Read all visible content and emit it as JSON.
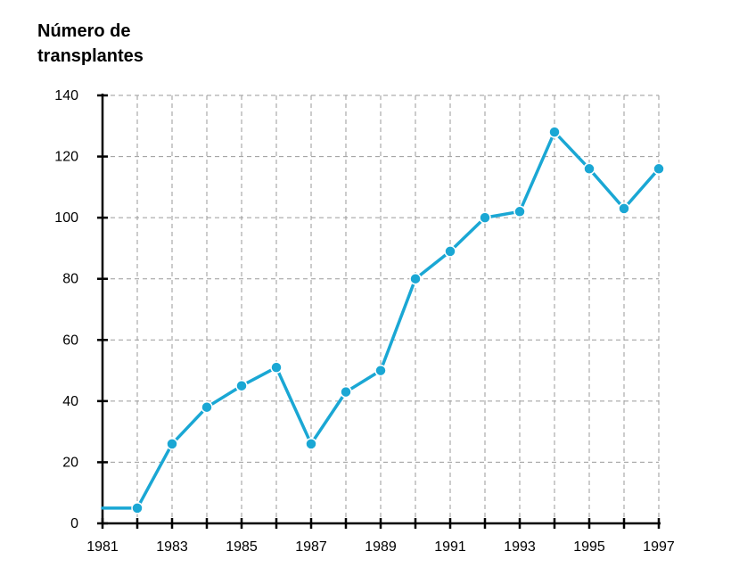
{
  "chart_data": {
    "type": "line",
    "ylabel_lines": [
      "Número de",
      "transplantes"
    ],
    "xlabel": "",
    "x": [
      1981,
      1982,
      1983,
      1984,
      1985,
      1986,
      1987,
      1988,
      1989,
      1990,
      1991,
      1992,
      1993,
      1994,
      1995,
      1996,
      1997
    ],
    "series": [
      {
        "values": [
          5,
          5,
          26,
          38,
          45,
          51,
          26,
          43,
          50,
          80,
          89,
          100,
          102,
          128,
          116,
          103,
          116
        ],
        "color": "#1aa7d4"
      }
    ],
    "xlim": [
      1981,
      1997
    ],
    "ylim": [
      0,
      140
    ],
    "yticks": [
      0,
      20,
      40,
      60,
      80,
      100,
      120,
      140
    ],
    "xtick_labels": [
      1981,
      1983,
      1985,
      1987,
      1989,
      1991,
      1993,
      1995,
      1997
    ],
    "grid": true,
    "legend": "none"
  }
}
